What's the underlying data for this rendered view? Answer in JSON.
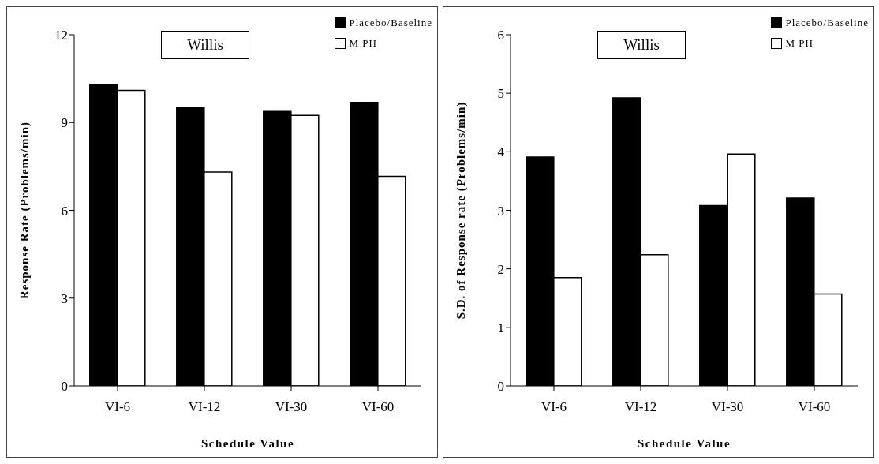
{
  "chart_data": [
    {
      "type": "bar",
      "annotations": [
        "Willis"
      ],
      "xlabel": "Schedule Value",
      "ylabel": "Response Rate (Problems/min)",
      "categories": [
        "VI-6",
        "VI-12",
        "VI-30",
        "VI-60"
      ],
      "series": [
        {
          "name": "Placebo/Baseline",
          "color": "#000000",
          "values": [
            10.3,
            9.5,
            9.38,
            9.69
          ]
        },
        {
          "name": "M PH",
          "color": "#ffffff",
          "values": [
            10.1,
            7.31,
            9.24,
            7.16
          ]
        }
      ],
      "ylim": [
        0,
        12
      ],
      "yticks": [
        0,
        3,
        6,
        9,
        12
      ],
      "grid": false,
      "legend": "top right"
    },
    {
      "type": "bar",
      "annotations": [
        "Willis"
      ],
      "xlabel": "Schedule Value",
      "ylabel": "S.D. of Response rate (Problems/min)",
      "categories": [
        "VI-6",
        "VI-12",
        "VI-30",
        "VI-60"
      ],
      "series": [
        {
          "name": "Placebo/Baseline",
          "color": "#000000",
          "values": [
            3.91,
            4.92,
            3.08,
            3.21
          ]
        },
        {
          "name": "M PH",
          "color": "#ffffff",
          "values": [
            1.85,
            2.24,
            3.96,
            1.57
          ]
        }
      ],
      "ylim": [
        0,
        6
      ],
      "yticks": [
        0,
        1,
        2,
        3,
        4,
        5,
        6
      ],
      "grid": false,
      "legend": "top right"
    }
  ]
}
